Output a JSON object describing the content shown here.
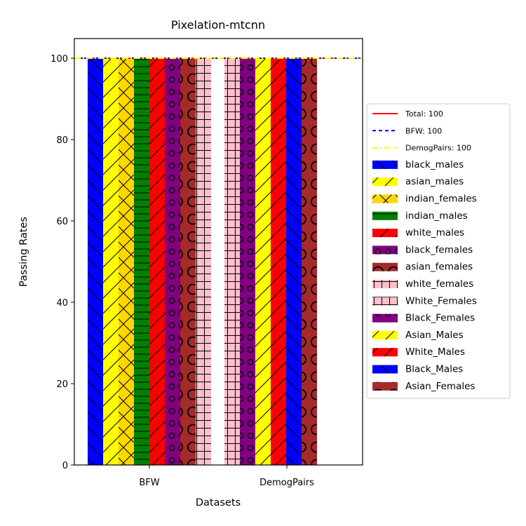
{
  "chart_data": {
    "type": "bar",
    "title": "Pixelation-mtcnn",
    "xlabel": "Datasets",
    "ylabel": "Passing Rates",
    "ylim": [
      0,
      100
    ],
    "yticks": [
      0,
      20,
      40,
      60,
      80,
      100
    ],
    "categories": [
      "BFW",
      "DemogPairs"
    ],
    "grid": false,
    "legend_position": "center-right outside",
    "reference_lines": [
      {
        "name": "Total: 100",
        "value": 100,
        "color": "#ff0000",
        "style": "solid"
      },
      {
        "name": "BFW: 100",
        "value": 100,
        "color": "#0000ff",
        "style": "dashed"
      },
      {
        "name": "DemogPairs: 100",
        "value": 100,
        "color": "#ffff00",
        "style": "dashdot"
      }
    ],
    "series": [
      {
        "name": "black_males",
        "category": "BFW",
        "value": 100,
        "color": "#0000ff",
        "hatch": "backslash"
      },
      {
        "name": "asian_males",
        "category": "BFW",
        "value": 100,
        "color": "#ffff00",
        "hatch": "slash"
      },
      {
        "name": "indian_females",
        "category": "BFW",
        "value": 100,
        "color": "#ffd700",
        "hatch": "cross"
      },
      {
        "name": "indian_males",
        "category": "BFW",
        "value": 100,
        "color": "#008000",
        "hatch": "dash"
      },
      {
        "name": "white_males",
        "category": "BFW",
        "value": 100,
        "color": "#ff0000",
        "hatch": "slash"
      },
      {
        "name": "black_females",
        "category": "BFW",
        "value": 100,
        "color": "#800080",
        "hatch": "small-circle"
      },
      {
        "name": "asian_females",
        "category": "BFW",
        "value": 100,
        "color": "#a52a2a",
        "hatch": "big-circle"
      },
      {
        "name": "white_females",
        "category": "BFW",
        "value": 100,
        "color": "#ffc0cb",
        "hatch": "plus"
      },
      {
        "name": "White_Females",
        "category": "DemogPairs",
        "value": 100,
        "color": "#ffc0cb",
        "hatch": "plus"
      },
      {
        "name": "Black_Females",
        "category": "DemogPairs",
        "value": 100,
        "color": "#800080",
        "hatch": "small-circle"
      },
      {
        "name": "Asian_Males",
        "category": "DemogPairs",
        "value": 100,
        "color": "#ffff00",
        "hatch": "slash"
      },
      {
        "name": "White_Males",
        "category": "DemogPairs",
        "value": 100,
        "color": "#ff0000",
        "hatch": "slash"
      },
      {
        "name": "Black_Males",
        "category": "DemogPairs",
        "value": 100,
        "color": "#0000ff",
        "hatch": "backslash"
      },
      {
        "name": "Asian_Females",
        "category": "DemogPairs",
        "value": 100,
        "color": "#a52a2a",
        "hatch": "big-circle"
      }
    ]
  }
}
